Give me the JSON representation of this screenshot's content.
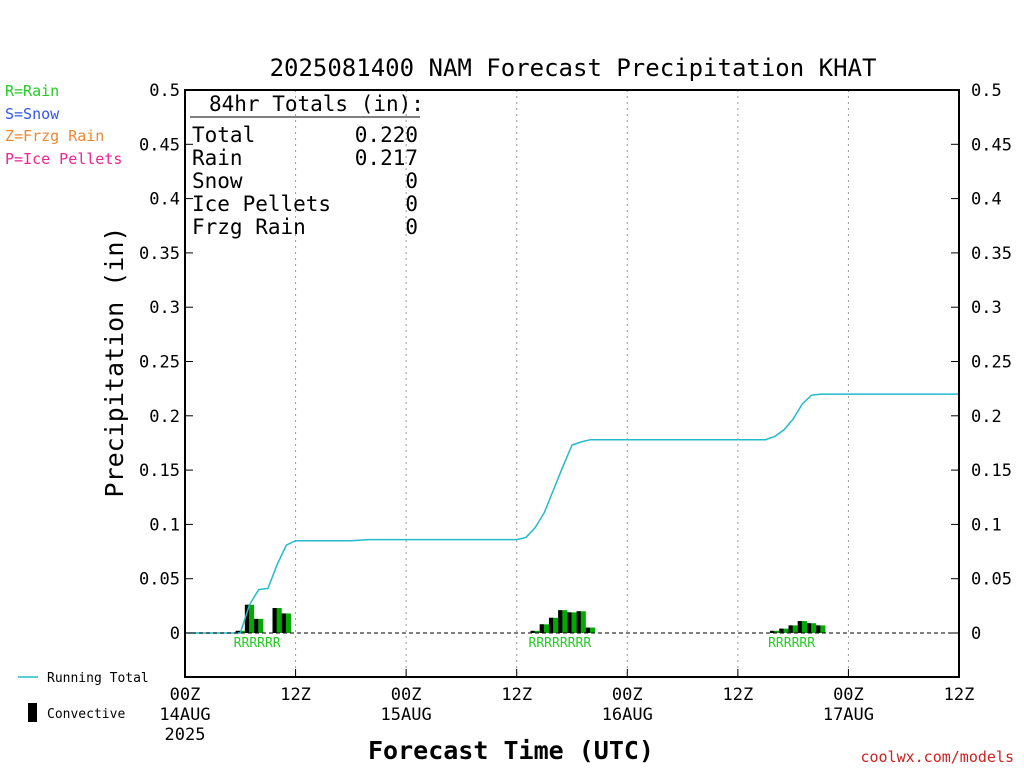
{
  "chart_data": {
    "type": "bar",
    "title": "2025081400 NAM Forecast Precipitation KHAT",
    "xlabel": "Forecast Time (UTC)",
    "ylabel": "Precipitation (in)",
    "ylim": [
      -0.04,
      0.5
    ],
    "xlim_hours": [
      0,
      84
    ],
    "yticks": [
      "0",
      "0.05",
      "0.1",
      "0.15",
      "0.2",
      "0.25",
      "0.3",
      "0.35",
      "0.4",
      "0.45",
      "0.5"
    ],
    "ytick_values": [
      0,
      0.05,
      0.1,
      0.15,
      0.2,
      0.25,
      0.3,
      0.35,
      0.4,
      0.45,
      0.5
    ],
    "xticks": [
      {
        "hour": 0,
        "label": "00Z",
        "date": "14AUG",
        "year": "2025"
      },
      {
        "hour": 12,
        "label": "12Z",
        "date": "",
        "year": ""
      },
      {
        "hour": 24,
        "label": "00Z",
        "date": "15AUG",
        "year": ""
      },
      {
        "hour": 36,
        "label": "12Z",
        "date": "",
        "year": ""
      },
      {
        "hour": 48,
        "label": "00Z",
        "date": "16AUG",
        "year": ""
      },
      {
        "hour": 60,
        "label": "12Z",
        "date": "",
        "year": ""
      },
      {
        "hour": 72,
        "label": "00Z",
        "date": "17AUG",
        "year": ""
      },
      {
        "hour": 84,
        "label": "12Z",
        "date": "",
        "year": ""
      }
    ],
    "grid": "dotted vertical at 12-hour ticks",
    "totals_box": {
      "header": "84hr Totals (in):",
      "rows": [
        {
          "label": "Total",
          "value": "0.220"
        },
        {
          "label": "Rain",
          "value": "0.217"
        },
        {
          "label": "Snow",
          "value": "0"
        },
        {
          "label": "Ice Pellets",
          "value": "0"
        },
        {
          "label": "Frzg Rain",
          "value": "0"
        }
      ]
    },
    "type_legend": [
      {
        "label": "R=Rain",
        "color": "#22cc22"
      },
      {
        "label": "S=Snow",
        "color": "#3355ee"
      },
      {
        "label": "Z=Frzg Rain",
        "color": "#ee8833"
      },
      {
        "label": "P=Ice Pellets",
        "color": "#ee2299"
      }
    ],
    "series_legend": {
      "running_total": "Running Total",
      "convective": "Convective"
    },
    "colors": {
      "running_total": "#22bbcc",
      "precip_bar": "#00aa00",
      "convective": "#000000",
      "rain_label": "#22cc22",
      "credit": "#cc2222"
    },
    "bars": [
      {
        "hour": 6,
        "value": 0.002,
        "convective": 0.001
      },
      {
        "hour": 7,
        "value": 0.026,
        "convective": 0.02
      },
      {
        "hour": 8,
        "value": 0.013,
        "convective": 0.008
      },
      {
        "hour": 10,
        "value": 0.023,
        "convective": 0.018
      },
      {
        "hour": 11,
        "value": 0.018,
        "convective": 0.014
      },
      {
        "hour": 38,
        "value": 0.002,
        "convective": 0.001
      },
      {
        "hour": 39,
        "value": 0.008,
        "convective": 0.005
      },
      {
        "hour": 40,
        "value": 0.014,
        "convective": 0.01
      },
      {
        "hour": 41,
        "value": 0.021,
        "convective": 0.016
      },
      {
        "hour": 42,
        "value": 0.019,
        "convective": 0.014
      },
      {
        "hour": 43,
        "value": 0.02,
        "convective": 0.015
      },
      {
        "hour": 44,
        "value": 0.005,
        "convective": 0.003
      },
      {
        "hour": 64,
        "value": 0.002,
        "convective": 0.001
      },
      {
        "hour": 65,
        "value": 0.004,
        "convective": 0.002
      },
      {
        "hour": 66,
        "value": 0.007,
        "convective": 0.004
      },
      {
        "hour": 67,
        "value": 0.011,
        "convective": 0.007
      },
      {
        "hour": 68,
        "value": 0.009,
        "convective": 0.006
      },
      {
        "hour": 69,
        "value": 0.007,
        "convective": 0.004
      }
    ],
    "precip_type_labels": [
      {
        "hour_start": 6,
        "text": "RRRRRR"
      },
      {
        "hour_start": 38,
        "text": "RRRRRRRR"
      },
      {
        "hour_start": 64,
        "text": "RRRRRR"
      }
    ],
    "running_total": {
      "hours": [
        0,
        6,
        7,
        8,
        9,
        10,
        11,
        12,
        18,
        20,
        24,
        36,
        37,
        38,
        39,
        40,
        41,
        42,
        43,
        44,
        45,
        48,
        58,
        63,
        64,
        65,
        66,
        67,
        68,
        69,
        72,
        84
      ],
      "values": [
        0,
        0,
        0.026,
        0.04,
        0.041,
        0.063,
        0.081,
        0.085,
        0.085,
        0.086,
        0.086,
        0.086,
        0.088,
        0.097,
        0.111,
        0.132,
        0.153,
        0.173,
        0.176,
        0.178,
        0.178,
        0.178,
        0.178,
        0.178,
        0.181,
        0.187,
        0.197,
        0.211,
        0.219,
        0.22,
        0.22,
        0.22
      ]
    }
  },
  "credit": "coolwx.com/models"
}
